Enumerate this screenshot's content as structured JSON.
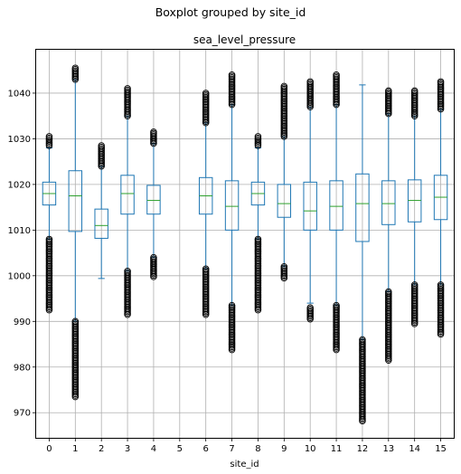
{
  "chart_data": {
    "type": "boxplot",
    "suptitle": "Boxplot grouped by site_id",
    "title": "sea_level_pressure",
    "xlabel": "site_id",
    "ylabel": "",
    "ylim": [
      964.5,
      1049.5
    ],
    "yticks": [
      970,
      980,
      990,
      1000,
      1010,
      1020,
      1030,
      1040
    ],
    "categories": [
      "0",
      "1",
      "2",
      "3",
      "4",
      "5",
      "6",
      "7",
      "8",
      "9",
      "10",
      "11",
      "12",
      "13",
      "14",
      "15"
    ],
    "grid": true,
    "colors": {
      "box": "#1f77b4",
      "median": "#2ca02c",
      "flier": "#000000",
      "grid": "#b0b0b0"
    },
    "boxes": [
      {
        "site": "0",
        "whislo": 1008,
        "q1": 1015.5,
        "med": 1018,
        "q3": 1020.5,
        "whishi": 1028,
        "fliers_low": [
          992.5,
          1008
        ],
        "fliers_high": [
          1028.5,
          1030.5
        ]
      },
      {
        "site": "1",
        "whislo": 990,
        "q1": 1009.7,
        "med": 1017.5,
        "q3": 1023,
        "whishi": 1043,
        "fliers_low": [
          973.5,
          990
        ],
        "fliers_high": [
          1043,
          1045.5
        ]
      },
      {
        "site": "2",
        "whislo": 999.4,
        "q1": 1008.2,
        "med": 1011,
        "q3": 1014.6,
        "whishi": 1024,
        "fliers_low": [],
        "fliers_high": [
          1024,
          1028.5
        ]
      },
      {
        "site": "3",
        "whislo": 1001,
        "q1": 1013.5,
        "med": 1018,
        "q3": 1022,
        "whishi": 1035,
        "fliers_low": [
          991.5,
          1001
        ],
        "fliers_high": [
          1035,
          1041
        ]
      },
      {
        "site": "4",
        "whislo": 1004,
        "q1": 1013.5,
        "med": 1016.5,
        "q3": 1019.8,
        "whishi": 1029,
        "fliers_low": [
          999.8,
          1004
        ],
        "fliers_high": [
          1029,
          1031.5
        ]
      },
      null,
      {
        "site": "6",
        "whislo": 1001.5,
        "q1": 1013.5,
        "med": 1017.5,
        "q3": 1021.5,
        "whishi": 1033.5,
        "fliers_low": [
          991.5,
          1001.5
        ],
        "fliers_high": [
          1033.5,
          1040
        ]
      },
      {
        "site": "7",
        "whislo": 993.5,
        "q1": 1010,
        "med": 1015.2,
        "q3": 1020.8,
        "whishi": 1037.5,
        "fliers_low": [
          983.8,
          993.5
        ],
        "fliers_high": [
          1037.5,
          1044
        ]
      },
      {
        "site": "8",
        "whislo": 1008,
        "q1": 1015.5,
        "med": 1018,
        "q3": 1020.5,
        "whishi": 1028,
        "fliers_low": [
          992.5,
          1008
        ],
        "fliers_high": [
          1028.5,
          1030.5
        ]
      },
      {
        "site": "9",
        "whislo": 1002,
        "q1": 1012.8,
        "med": 1015.8,
        "q3": 1020,
        "whishi": 1030.5,
        "fliers_low": [
          999.5,
          1002
        ],
        "fliers_high": [
          1030.5,
          1041.5
        ]
      },
      {
        "site": "10",
        "whislo": 994,
        "q1": 1010,
        "med": 1014.2,
        "q3": 1020.5,
        "whishi": 1037,
        "fliers_low": [
          990.5,
          993
        ],
        "fliers_high": [
          1037,
          1042.5
        ]
      },
      {
        "site": "11",
        "whislo": 993.5,
        "q1": 1010,
        "med": 1015.2,
        "q3": 1020.8,
        "whishi": 1037.5,
        "fliers_low": [
          983.8,
          993.5
        ],
        "fliers_high": [
          1037.5,
          1044
        ]
      },
      {
        "site": "12",
        "whislo": 986,
        "q1": 1007.5,
        "med": 1015.8,
        "q3": 1022.3,
        "whishi": 1041.8,
        "fliers_low": [
          968.2,
          986
        ],
        "fliers_high": []
      },
      {
        "site": "13",
        "whislo": 996.5,
        "q1": 1011.2,
        "med": 1015.8,
        "q3": 1020.8,
        "whishi": 1035.5,
        "fliers_low": [
          981.5,
          996.5
        ],
        "fliers_high": [
          1035.5,
          1040.5
        ]
      },
      {
        "site": "14",
        "whislo": 998,
        "q1": 1011.8,
        "med": 1016.5,
        "q3": 1021,
        "whishi": 1035,
        "fliers_low": [
          989.5,
          998
        ],
        "fliers_high": [
          1035,
          1040.5
        ]
      },
      {
        "site": "15",
        "whislo": 998,
        "q1": 1012.3,
        "med": 1017.2,
        "q3": 1022,
        "whishi": 1036.5,
        "fliers_low": [
          987.2,
          998
        ],
        "fliers_high": [
          1036.5,
          1042.5
        ]
      }
    ]
  }
}
